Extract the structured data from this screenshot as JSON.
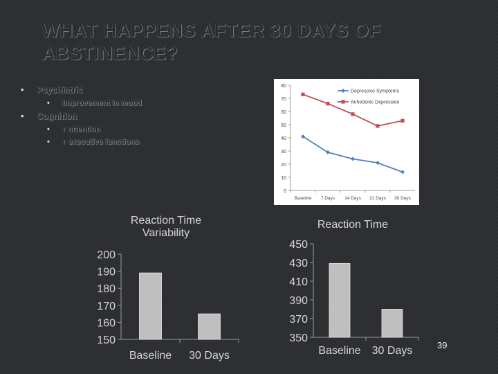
{
  "slide": {
    "title": "WHAT HAPPENS AFTER 30 DAYS OF ABSTINENCE?",
    "page_number": "39",
    "bullets": [
      {
        "label": "Psychiatric",
        "sub": [
          "Improvement in mood"
        ]
      },
      {
        "label": "Cognition",
        "sub": [
          "↑ attention",
          "↑ executive functions"
        ]
      }
    ],
    "colors": {
      "background": "#2b2d30",
      "depressive": "#4f81bd",
      "anhedonic": "#c0504d",
      "bar": "#bfbfbf"
    }
  },
  "chart_data": [
    {
      "type": "line",
      "title": "",
      "categories": [
        "Baseline",
        "7 Days",
        "14 Days",
        "21 Days",
        "30 Days"
      ],
      "series": [
        {
          "name": "Depressive Symptoms",
          "values": [
            41,
            29,
            24,
            21,
            14
          ]
        },
        {
          "name": "Anhedonic Depression",
          "values": [
            73,
            66,
            58,
            49,
            53
          ]
        }
      ],
      "ylim": [
        0,
        80
      ],
      "yticks": [
        0,
        10,
        20,
        30,
        40,
        50,
        60,
        70,
        80
      ],
      "legend": "top-right",
      "grid": false
    },
    {
      "type": "bar",
      "title": "Reaction Time Variability",
      "categories": [
        "Baseline",
        "30 Days"
      ],
      "values": [
        189,
        165
      ],
      "ylim": [
        150,
        200
      ],
      "yticks": [
        150,
        160,
        170,
        180,
        190,
        200
      ]
    },
    {
      "type": "bar",
      "title": "Reaction Time",
      "categories": [
        "Baseline",
        "30 Days"
      ],
      "values": [
        429,
        380
      ],
      "ylim": [
        350,
        450
      ],
      "yticks": [
        350,
        370,
        390,
        410,
        430,
        450
      ]
    }
  ]
}
